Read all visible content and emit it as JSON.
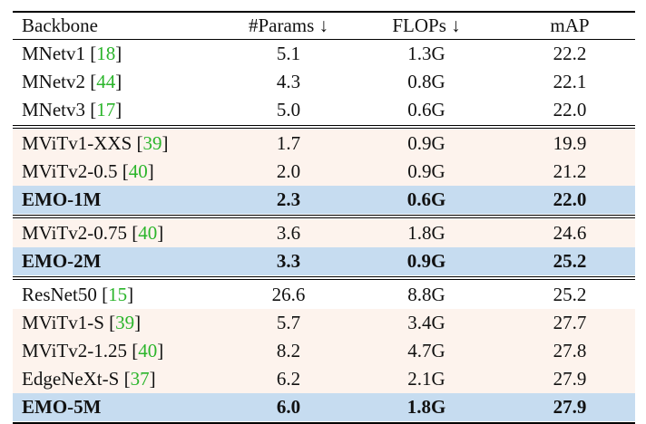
{
  "table": {
    "header": [
      "Backbone",
      "#Params ↓",
      "FLOPs ↓",
      "mAP"
    ],
    "citation_brackets": [
      "[",
      "]"
    ],
    "groups": [
      [
        {
          "backbone": "MNetv1",
          "ref": "18",
          "cells": [
            "5.1",
            "1.3G",
            "22.2"
          ]
        },
        {
          "backbone": "MNetv2",
          "ref": "44",
          "cells": [
            "4.3",
            "0.8G",
            "22.1"
          ]
        },
        {
          "backbone": "MNetv3",
          "ref": "17",
          "cells": [
            "5.0",
            "0.6G",
            "22.0"
          ]
        }
      ],
      [
        {
          "backbone": "MViTv1-XXS",
          "ref": "39",
          "cells": [
            "1.7",
            "0.9G",
            "19.9"
          ],
          "bg": "#fdf3ed"
        },
        {
          "backbone": "MViTv2-0.5",
          "ref": "40",
          "cells": [
            "2.0",
            "0.9G",
            "21.2"
          ],
          "bg": "#fdf3ed"
        },
        {
          "backbone": "EMO-1M",
          "cells": [
            "2.3",
            "0.6G",
            "22.0"
          ],
          "bg": "#c6dcf0",
          "bold": true
        }
      ],
      [
        {
          "backbone": "MViTv2-0.75",
          "ref": "40",
          "cells": [
            "3.6",
            "1.8G",
            "24.6"
          ],
          "bg": "#fdf3ed"
        },
        {
          "backbone": "EMO-2M",
          "cells": [
            "3.3",
            "0.9G",
            "25.2"
          ],
          "bg": "#c6dcf0",
          "bold": true
        }
      ],
      [
        {
          "backbone": "ResNet50",
          "ref": "15",
          "cells": [
            "26.6",
            "8.8G",
            "25.2"
          ]
        },
        {
          "backbone": "MViTv1-S",
          "ref": "39",
          "cells": [
            "5.7",
            "3.4G",
            "27.7"
          ],
          "bg": "#fdf3ed"
        },
        {
          "backbone": "MViTv2-1.25",
          "ref": "40",
          "cells": [
            "8.2",
            "4.7G",
            "27.8"
          ],
          "bg": "#fdf3ed"
        },
        {
          "backbone": "EdgeNeXt-S",
          "ref": "37",
          "cells": [
            "6.2",
            "2.1G",
            "27.9"
          ],
          "bg": "#fdf3ed"
        },
        {
          "backbone": "EMO-5M",
          "cells": [
            "6.0",
            "1.8G",
            "27.9"
          ],
          "bg": "#c6dcf0",
          "bold": true
        }
      ]
    ]
  }
}
